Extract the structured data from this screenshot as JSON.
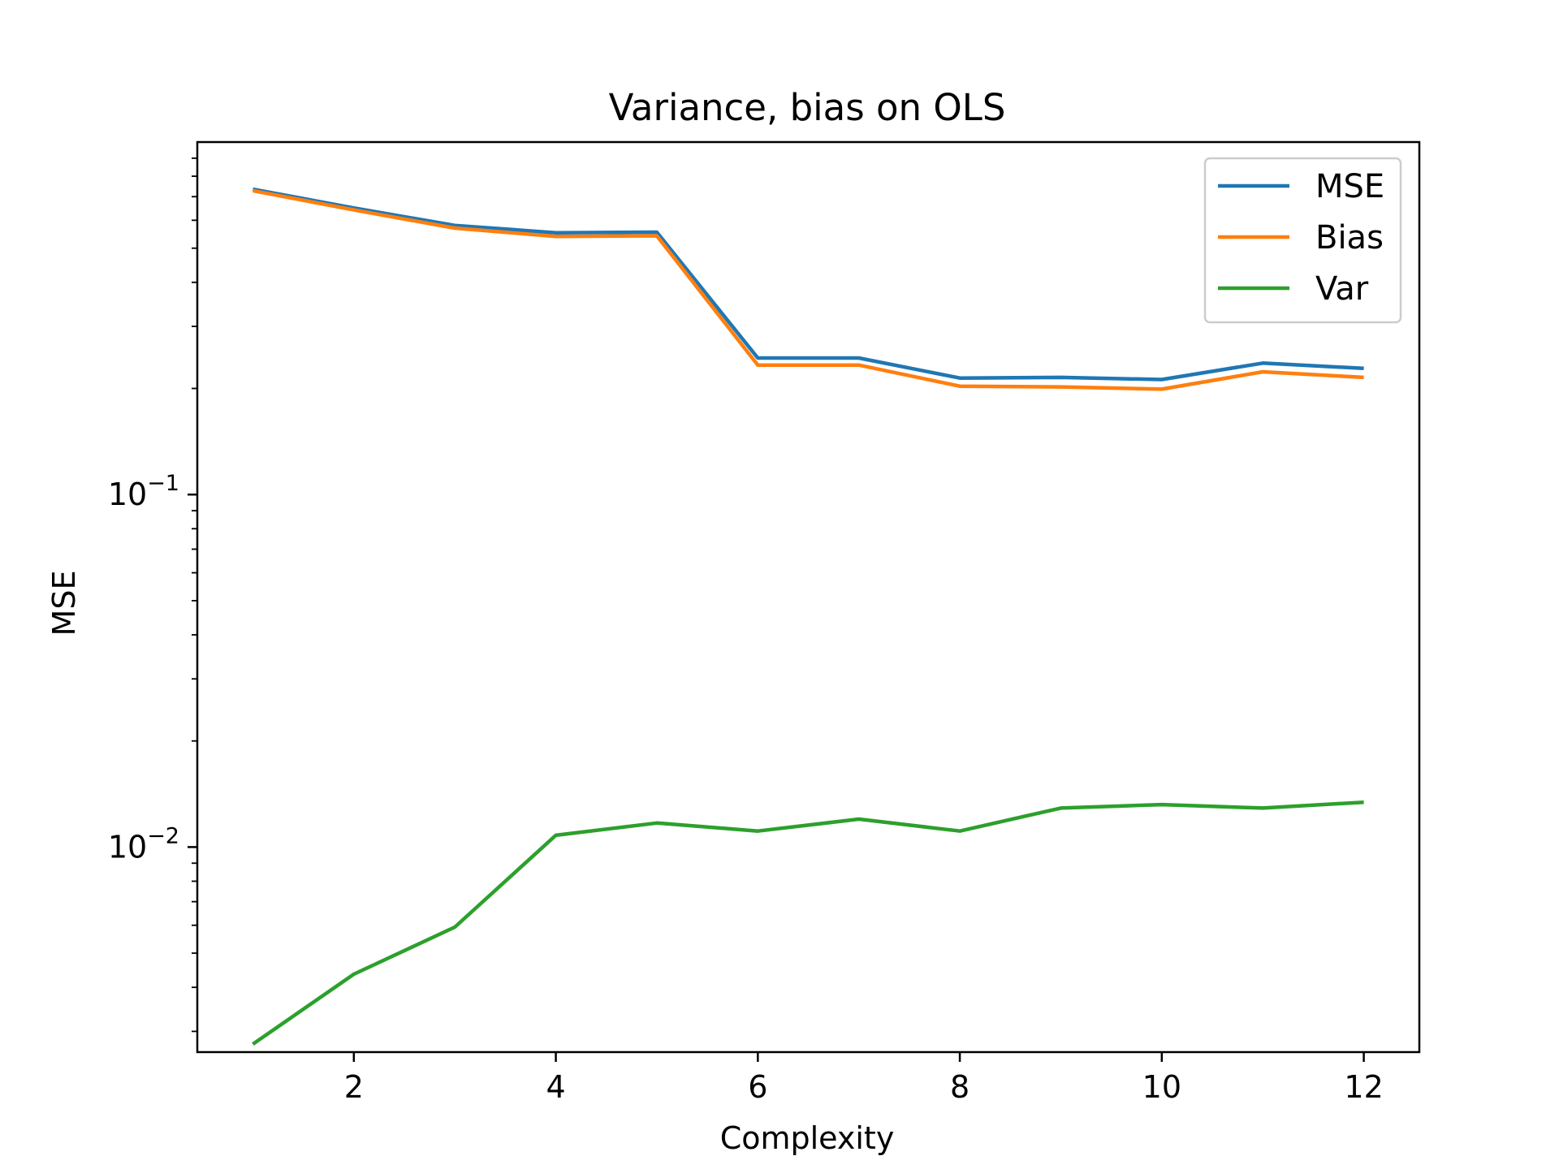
{
  "chart_data": {
    "type": "line",
    "title": "Variance, bias on OLS",
    "xlabel": "Complexity",
    "ylabel": "MSE",
    "yscale": "log",
    "xlim": [
      0.45,
      12.55
    ],
    "ylim": [
      0.00262,
      1.0
    ],
    "x_ticks": [
      2,
      4,
      6,
      8,
      10,
      12
    ],
    "y_ticks": [
      {
        "value": 0.1,
        "base": "10",
        "exp": "−1"
      },
      {
        "value": 0.01,
        "base": "10",
        "exp": "−2"
      }
    ],
    "legend_position": "top-right",
    "grid": false,
    "x": [
      1,
      2,
      3,
      4,
      5,
      6,
      7,
      8,
      9,
      10,
      11,
      12
    ],
    "series": [
      {
        "name": "MSE",
        "color": "#1f77b4",
        "values": [
          0.735,
          0.65,
          0.58,
          0.553,
          0.555,
          0.244,
          0.244,
          0.214,
          0.215,
          0.212,
          0.236,
          0.228
        ]
      },
      {
        "name": "Bias",
        "color": "#ff7f0e",
        "values": [
          0.728,
          0.642,
          0.57,
          0.54,
          0.542,
          0.233,
          0.233,
          0.203,
          0.202,
          0.199,
          0.223,
          0.215
        ]
      },
      {
        "name": "Var",
        "color": "#2ca02c",
        "values": [
          0.00276,
          0.00436,
          0.00593,
          0.0108,
          0.0117,
          0.0111,
          0.012,
          0.0111,
          0.0129,
          0.0132,
          0.0129,
          0.0134
        ]
      }
    ]
  }
}
